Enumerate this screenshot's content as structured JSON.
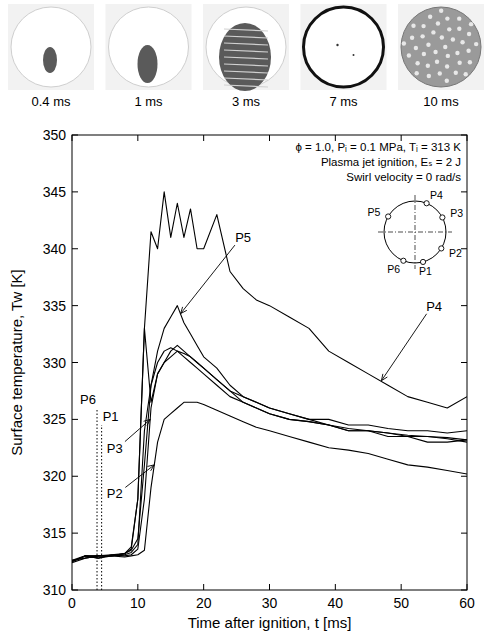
{
  "chart_data": {
    "type": "line",
    "frames": [
      "0.4 ms",
      "1 ms",
      "3 ms",
      "7 ms",
      "10 ms"
    ],
    "xlabel": "Time after ignition, t [ms]",
    "ylabel": "Surface temperature, Tw [K]",
    "conditions": [
      "ϕ = 1.0, Pᵢ = 0.1 MPa, Tᵢ = 313 K",
      "Plasma jet ignition, Eₛ = 2 J",
      "Swirl velocity = 0 rad/s"
    ],
    "xlim": [
      0,
      60
    ],
    "ylim": [
      310,
      350
    ],
    "xticks": [
      0,
      10,
      20,
      30,
      40,
      50,
      60
    ],
    "yticks": [
      310,
      315,
      320,
      325,
      330,
      335,
      340,
      345,
      350
    ],
    "grid": false,
    "x": [
      0,
      2,
      4,
      6,
      8,
      9,
      10,
      11,
      12,
      13,
      14,
      15,
      16,
      17,
      18,
      19,
      20,
      22,
      24,
      26,
      28,
      30,
      33,
      36,
      39,
      42,
      45,
      48,
      51,
      54,
      57,
      60
    ],
    "series": [
      {
        "name": "P1",
        "color": "#000000",
        "line_style": "solid",
        "values": [
          312.6,
          313,
          312.8,
          313.1,
          313.2,
          313.6,
          318,
          333,
          326.5,
          329,
          330,
          331,
          331.5,
          331,
          330.5,
          330,
          329.5,
          328.5,
          327.5,
          327,
          326.5,
          326,
          325.5,
          325,
          324.5,
          324,
          324,
          323.5,
          323.5,
          323,
          323,
          323.2
        ]
      },
      {
        "name": "P2",
        "color": "#000000",
        "line_style": "solid",
        "values": [
          312.4,
          312.8,
          313,
          313,
          312.9,
          313,
          313.1,
          313.5,
          319,
          323,
          325,
          325.5,
          326,
          326.5,
          326.5,
          326.5,
          326.3,
          325.8,
          325.3,
          324.8,
          324.3,
          324,
          323.5,
          323,
          322.5,
          322.3,
          322,
          321.5,
          321,
          320.8,
          320.5,
          320.2
        ]
      },
      {
        "name": "P3",
        "color": "#000000",
        "line_style": "solid",
        "values": [
          312.5,
          313,
          313,
          313.1,
          313,
          313.1,
          313.6,
          318,
          326,
          329,
          330,
          330.5,
          331,
          330.8,
          330.5,
          330,
          329.5,
          328.5,
          327.5,
          326.5,
          326,
          325.5,
          325,
          324.8,
          324.5,
          324,
          324,
          323.8,
          323.5,
          323.5,
          323.3,
          323
        ]
      },
      {
        "name": "P4",
        "color": "#000000",
        "line_style": "solid",
        "values": [
          312.5,
          313,
          312.8,
          313,
          313.2,
          313.8,
          318,
          333,
          341.5,
          340,
          345,
          341,
          344,
          341,
          343.5,
          340,
          340,
          343,
          338,
          336.5,
          335.5,
          335,
          334,
          333,
          331,
          330,
          329,
          328,
          327,
          326.5,
          326,
          327
        ]
      },
      {
        "name": "P5",
        "color": "#000000",
        "line_style": "solid",
        "values": [
          312.6,
          312.8,
          313,
          313,
          313.2,
          313.5,
          314.5,
          321,
          328,
          331,
          333,
          334,
          335,
          333.5,
          332.5,
          331.5,
          330.5,
          329.5,
          328,
          327,
          326.5,
          326,
          325.5,
          325,
          325,
          324.5,
          324.5,
          324.2,
          324,
          324,
          323.8,
          324
        ]
      },
      {
        "name": "P6",
        "color": "#000000",
        "line_style": "solid",
        "values": [
          312.5,
          313,
          313,
          313,
          313.1,
          313.3,
          314,
          324,
          328,
          330,
          331,
          331.3,
          331,
          330.5,
          330,
          329.5,
          329,
          328,
          327,
          326.5,
          326,
          325.5,
          325,
          324.8,
          324.5,
          324.2,
          324,
          323.8,
          323.6,
          323.5,
          323.4,
          323.2
        ]
      }
    ],
    "vlines": [
      {
        "label": "P6",
        "x": 3.8,
        "y": 326
      },
      {
        "label": "P1",
        "x": 4.5,
        "y": 324.5
      }
    ],
    "annotations": [
      {
        "text": "P5",
        "x": 26,
        "y": 341,
        "arrow_x": 16.5,
        "arrow_y": 334.3
      },
      {
        "text": "P4",
        "x": 55,
        "y": 335,
        "arrow_x": 47,
        "arrow_y": 328.4
      },
      {
        "text": "P3",
        "x": 6.5,
        "y": 322.5,
        "arrow_x": 11.9,
        "arrow_y": 325
      },
      {
        "text": "P2",
        "x": 6.5,
        "y": 318.5,
        "arrow_x": 12.5,
        "arrow_y": 321
      }
    ]
  }
}
